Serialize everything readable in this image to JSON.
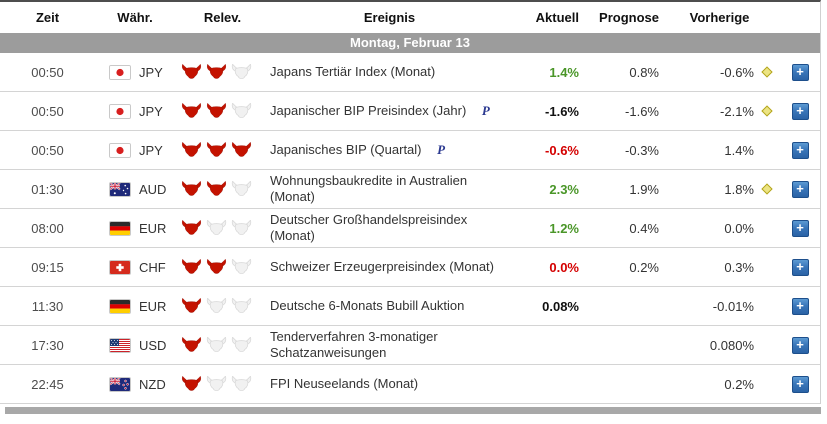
{
  "table": {
    "columns": {
      "time": "Zeit",
      "currency": "Währ.",
      "relevance": "Relev.",
      "event": "Ereignis",
      "actual": "Aktuell",
      "forecast": "Prognose",
      "previous": "Vorherige"
    },
    "day_header": "Montag, Februar 13",
    "icons": {
      "plus": "+",
      "preliminary": "P",
      "note": "note-diamond",
      "relevance_on": "bull-icon-active",
      "relevance_off": "bull-icon-inactive"
    },
    "colors": {
      "better": "#4a9628",
      "worse": "#d40000",
      "neutral": "#111111",
      "day_bar_bg": "#9c9c9c",
      "plus_button": "#2a62a5",
      "note_diamond": "#ece483"
    },
    "rows": [
      {
        "time": "00:50",
        "currency": "JPY",
        "flag": "flag-japan",
        "relevance": 2,
        "event": "Japans Tertiär Index (Monat)",
        "preliminary": false,
        "actual": "1.4%",
        "actual_tone": "better",
        "forecast": "0.8%",
        "previous": "-0.6%",
        "has_note": true
      },
      {
        "time": "00:50",
        "currency": "JPY",
        "flag": "flag-japan",
        "relevance": 2,
        "event": "Japanischer BIP Preisindex (Jahr)",
        "preliminary": true,
        "actual": "-1.6%",
        "actual_tone": "asexpected",
        "forecast": "-1.6%",
        "previous": "-2.1%",
        "has_note": true
      },
      {
        "time": "00:50",
        "currency": "JPY",
        "flag": "flag-japan",
        "relevance": 3,
        "event": "Japanisches BIP (Quartal)",
        "preliminary": true,
        "actual": "-0.6%",
        "actual_tone": "worse",
        "forecast": "-0.3%",
        "previous": "1.4%",
        "has_note": false
      },
      {
        "time": "01:30",
        "currency": "AUD",
        "flag": "flag-australia",
        "relevance": 2,
        "event": "Wohnungsbaukredite in Australien (Monat)",
        "preliminary": false,
        "actual": "2.3%",
        "actual_tone": "better",
        "forecast": "1.9%",
        "previous": "1.8%",
        "has_note": true
      },
      {
        "time": "08:00",
        "currency": "EUR",
        "flag": "flag-germany",
        "relevance": 1,
        "event": "Deutscher Großhandelspreisindex (Monat)",
        "preliminary": false,
        "actual": "1.2%",
        "actual_tone": "better",
        "forecast": "0.4%",
        "previous": "0.0%",
        "has_note": false
      },
      {
        "time": "09:15",
        "currency": "CHF",
        "flag": "flag-switzerland",
        "relevance": 2,
        "event": "Schweizer Erzeugerpreisindex (Monat)",
        "preliminary": false,
        "actual": "0.0%",
        "actual_tone": "worse",
        "forecast": "0.2%",
        "previous": "0.3%",
        "has_note": false
      },
      {
        "time": "11:30",
        "currency": "EUR",
        "flag": "flag-germany",
        "relevance": 1,
        "event": "Deutsche 6-Monats Bubill Auktion",
        "preliminary": false,
        "actual": "0.08%",
        "actual_tone": "asexpected",
        "forecast": "",
        "previous": "-0.01%",
        "has_note": false
      },
      {
        "time": "17:30",
        "currency": "USD",
        "flag": "flag-usa",
        "relevance": 1,
        "event": "Tenderverfahren 3-monatiger Schatzanweisungen",
        "preliminary": false,
        "actual": "",
        "actual_tone": "",
        "forecast": "",
        "previous": "0.080%",
        "has_note": false
      },
      {
        "time": "22:45",
        "currency": "NZD",
        "flag": "flag-new-zealand",
        "relevance": 1,
        "event": "FPI Neuseelands (Monat)",
        "preliminary": false,
        "actual": "",
        "actual_tone": "",
        "forecast": "",
        "previous": "0.2%",
        "has_note": false
      }
    ]
  }
}
